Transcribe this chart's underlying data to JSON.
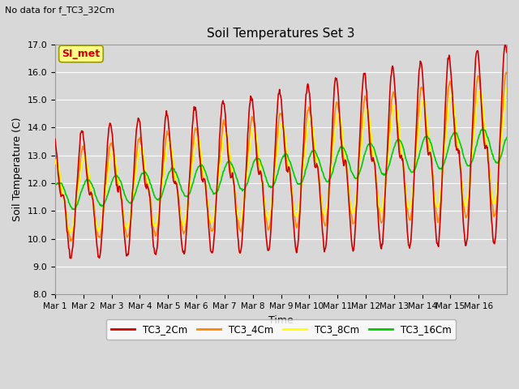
{
  "title": "Soil Temperatures Set 3",
  "subtitle": "No data for f_TC3_32Cm",
  "xlabel": "Time",
  "ylabel": "Soil Temperature (C)",
  "ylim": [
    8.0,
    17.0
  ],
  "yticks": [
    8.0,
    9.0,
    10.0,
    11.0,
    12.0,
    13.0,
    14.0,
    15.0,
    16.0,
    17.0
  ],
  "xtick_labels": [
    "Mar 1",
    "Mar 2",
    "Mar 3",
    "Mar 4",
    "Mar 5",
    "Mar 6",
    "Mar 7",
    "Mar 8",
    "Mar 9",
    "Mar 10",
    "Mar 11",
    "Mar 12",
    "Mar 13",
    "Mar 14",
    "Mar 15",
    "Mar 16"
  ],
  "background_color": "#d8d8d8",
  "plot_bg_color": "#d8d8d8",
  "grid_color": "#ffffff",
  "series_colors": {
    "TC3_2Cm": "#cc0000",
    "TC3_4Cm": "#ff8800",
    "TC3_8Cm": "#ffff00",
    "TC3_16Cm": "#00cc00"
  },
  "legend_label": "SI_met",
  "legend_box_color": "#ffff88",
  "legend_text_color": "#cc0000",
  "legend_box_edge": "#999900"
}
